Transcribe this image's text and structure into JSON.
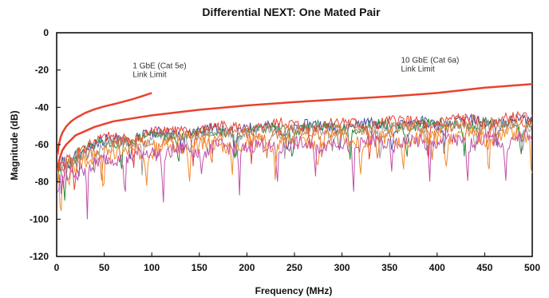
{
  "chart_data": {
    "type": "line",
    "title": "Differential NEXT: One Mated Pair",
    "xlabel": "Frequency (MHz)",
    "ylabel": "Magnitude (dB)",
    "xlim": [
      0,
      500
    ],
    "ylim": [
      -120,
      0
    ],
    "xticks": [
      0,
      50,
      100,
      150,
      200,
      250,
      300,
      350,
      400,
      450,
      500
    ],
    "yticks": [
      0,
      -20,
      -40,
      -60,
      -80,
      -100,
      -120
    ],
    "grid": false,
    "colors": {
      "limit": "#e8432f",
      "measured": [
        "#e8432f",
        "#f58a2a",
        "#c050a8",
        "#4a4aa0",
        "#2e8b3e",
        "#9a9a9a",
        "#e07838"
      ]
    },
    "annotations": [
      {
        "line1": "1 GbE (Cat 5e)",
        "line2": "Link Limit",
        "x": 80,
        "y": -19
      },
      {
        "line1": "10 GbE (Cat 6a)",
        "line2": "Link Limit",
        "x": 362,
        "y": -16
      }
    ],
    "limit_lines": [
      {
        "x": [
          1,
          2,
          4,
          6,
          10,
          15,
          20,
          30,
          40,
          50,
          60,
          70,
          80,
          90,
          100
        ],
        "y": [
          -65.3,
          -60.8,
          -56.3,
          -53.6,
          -50.3,
          -47.6,
          -45.8,
          -43.0,
          -41.0,
          -39.5,
          -38.3,
          -37.0,
          -35.6,
          -34.0,
          -32.3
        ]
      },
      {
        "x": [
          1,
          2,
          4,
          6,
          10,
          20,
          40,
          60,
          100,
          150,
          200,
          250,
          300,
          350,
          400,
          450,
          500
        ],
        "y": [
          -74.3,
          -70.0,
          -66.0,
          -63.0,
          -60.0,
          -55.0,
          -50.5,
          -47.5,
          -44.3,
          -41.3,
          -39.0,
          -37.2,
          -35.6,
          -34.2,
          -32.3,
          -29.5,
          -27.5
        ]
      }
    ],
    "series": [
      {
        "color": "#4a4aa0",
        "base": -52,
        "period": 55,
        "depth": 14,
        "phase": 5,
        "noise": 3,
        "seed": 11
      },
      {
        "color": "#2e8b3e",
        "base": -53,
        "period": 60,
        "depth": 16,
        "phase": 22,
        "noise": 3,
        "seed": 23
      },
      {
        "color": "#9a9a9a",
        "base": -54,
        "period": 50,
        "depth": 14,
        "phase": 35,
        "noise": 3,
        "seed": 37
      },
      {
        "color": "#e8432f",
        "base": -51,
        "period": 62,
        "depth": 18,
        "phase": 12,
        "noise": 3,
        "seed": 41
      },
      {
        "color": "#e07838",
        "base": -55,
        "period": 58,
        "depth": 15,
        "phase": 40,
        "noise": 3,
        "seed": 53
      },
      {
        "color": "#f58a2a",
        "base": -60,
        "period": 45,
        "depth": 22,
        "phase": 18,
        "noise": 4,
        "seed": 67
      },
      {
        "color": "#c050a8",
        "base": -62,
        "period": 40,
        "depth": 26,
        "phase": 28,
        "noise": 4,
        "seed": 79
      }
    ]
  }
}
